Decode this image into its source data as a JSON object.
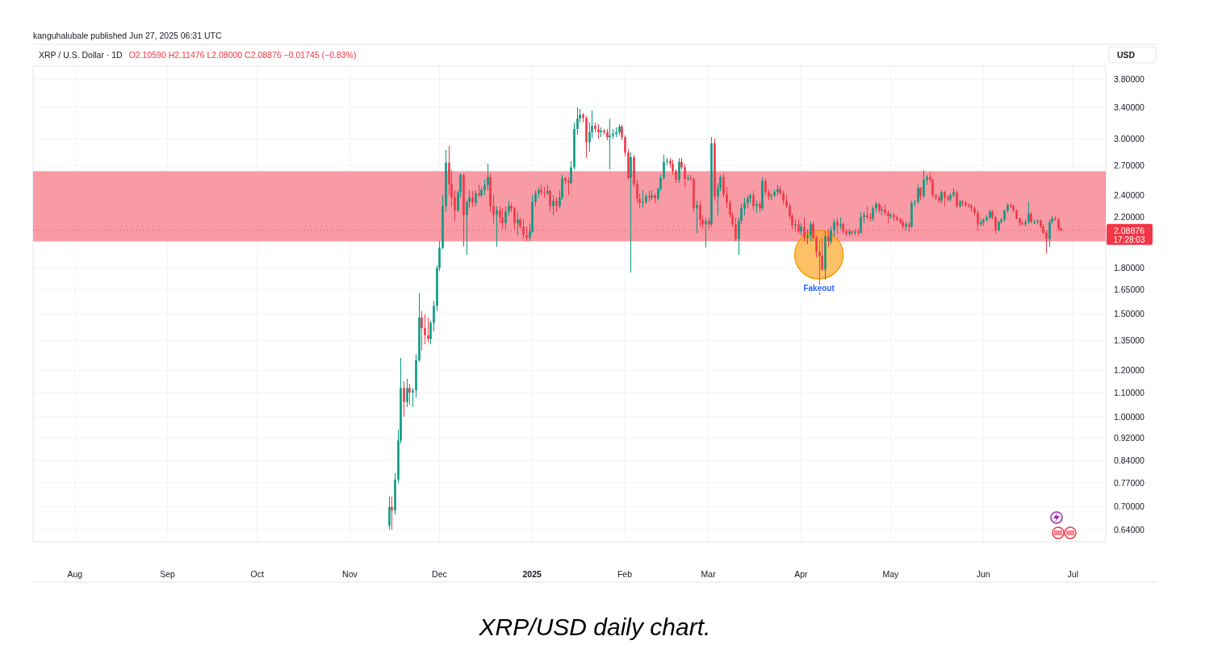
{
  "chart_data": {
    "type": "candlestick",
    "title": "XRP / U.S. Dollar · 1D",
    "subtitle": "O2.10590 H2.11476 L2.08000 C2.08876 −0.01745 (−0.83%)",
    "ylabel": "USD",
    "annotations": [
      "kanguhalubale published Jun 27, 2025 06:31 UTC",
      "17:28:03",
      "XRP/USD daily chart.",
      {
        "text": "Fakeout",
        "x": "2025-04-07",
        "y": 1.66
      }
    ],
    "log": "y",
    "grid": true,
    "xlim": [
      "2024-07-18",
      "2025-07-12"
    ],
    "xticks": [
      {
        "value": "2024-08-01",
        "label": "Aug"
      },
      {
        "value": "2024-09-01",
        "label": "Sep"
      },
      {
        "value": "2024-10-01",
        "label": "Oct"
      },
      {
        "value": "2024-11-01",
        "label": "Nov"
      },
      {
        "value": "2024-12-01",
        "label": "Dec"
      },
      {
        "value": "2025-01-01",
        "label": "2025"
      },
      {
        "value": "2025-02-01",
        "label": "Feb"
      },
      {
        "value": "2025-03-01",
        "label": "Mar"
      },
      {
        "value": "2025-04-01",
        "label": "Apr"
      },
      {
        "value": "2025-05-01",
        "label": "May"
      },
      {
        "value": "2025-06-01",
        "label": "Jun"
      },
      {
        "value": "2025-07-01",
        "label": "Jul"
      }
    ],
    "ylim": [
      0.61,
      4.0
    ],
    "yticks": [
      {
        "value": 0.64,
        "label": "0.64000"
      },
      {
        "value": 0.7,
        "label": "0.70000"
      },
      {
        "value": 0.77,
        "label": "0.77000"
      },
      {
        "value": 0.84,
        "label": "0.84000"
      },
      {
        "value": 0.92,
        "label": "0.92000"
      },
      {
        "value": 1.0,
        "label": "1.00000"
      },
      {
        "value": 1.1,
        "label": "1.10000"
      },
      {
        "value": 1.2,
        "label": "1.20000"
      },
      {
        "value": 1.35,
        "label": "1.35000"
      },
      {
        "value": 1.5,
        "label": "1.50000"
      },
      {
        "value": 1.65,
        "label": "1.65000"
      },
      {
        "value": 1.8,
        "label": "1.80000"
      },
      {
        "value": 2.2,
        "label": "2.20000"
      },
      {
        "value": 2.4,
        "label": "2.40000"
      },
      {
        "value": 2.7,
        "label": "2.70000"
      },
      {
        "value": 3.0,
        "label": "3.00000"
      },
      {
        "value": 3.4,
        "label": "3.40000"
      },
      {
        "value": 3.8,
        "label": "3.80000"
      }
    ],
    "ref_lines": [
      {
        "axis": "y",
        "value": 2.08876,
        "label": "2.08876",
        "color": "#f23645",
        "line_style": "dotted"
      }
    ],
    "bands": [
      {
        "axis": "y",
        "from": 2.0,
        "to": 2.64,
        "color": "#f7828f"
      }
    ],
    "x": [
      "2024-11-14",
      "2024-11-15",
      "2024-11-16",
      "2024-11-17",
      "2024-11-18",
      "2024-11-19",
      "2024-11-20",
      "2024-11-21",
      "2024-11-22",
      "2024-11-23",
      "2024-11-24",
      "2024-11-25",
      "2024-11-26",
      "2024-11-27",
      "2024-11-28",
      "2024-11-29",
      "2024-11-30",
      "2024-12-01",
      "2024-12-02",
      "2024-12-03",
      "2024-12-04",
      "2024-12-05",
      "2024-12-06",
      "2024-12-07",
      "2024-12-08",
      "2024-12-09",
      "2024-12-10",
      "2024-12-11",
      "2024-12-12",
      "2024-12-13",
      "2024-12-14",
      "2024-12-15",
      "2024-12-16",
      "2024-12-17",
      "2024-12-18",
      "2024-12-19",
      "2024-12-20",
      "2024-12-21",
      "2024-12-22",
      "2024-12-23",
      "2024-12-24",
      "2024-12-25",
      "2024-12-26",
      "2024-12-27",
      "2024-12-28",
      "2024-12-29",
      "2024-12-30",
      "2024-12-31",
      "2025-01-01",
      "2025-01-02",
      "2025-01-03",
      "2025-01-04",
      "2025-01-05",
      "2025-01-06",
      "2025-01-07",
      "2025-01-08",
      "2025-01-09",
      "2025-01-10",
      "2025-01-11",
      "2025-01-12",
      "2025-01-13",
      "2025-01-14",
      "2025-01-15",
      "2025-01-16",
      "2025-01-17",
      "2025-01-18",
      "2025-01-19",
      "2025-01-20",
      "2025-01-21",
      "2025-01-22",
      "2025-01-23",
      "2025-01-24",
      "2025-01-25",
      "2025-01-26",
      "2025-01-27",
      "2025-01-28",
      "2025-01-29",
      "2025-01-30",
      "2025-01-31",
      "2025-02-01",
      "2025-02-02",
      "2025-02-03",
      "2025-02-04",
      "2025-02-05",
      "2025-02-06",
      "2025-02-07",
      "2025-02-08",
      "2025-02-09",
      "2025-02-10",
      "2025-02-11",
      "2025-02-12",
      "2025-02-13",
      "2025-02-14",
      "2025-02-15",
      "2025-02-16",
      "2025-02-17",
      "2025-02-18",
      "2025-02-19",
      "2025-02-20",
      "2025-02-21",
      "2025-02-22",
      "2025-02-23",
      "2025-02-24",
      "2025-02-25",
      "2025-02-26",
      "2025-02-27",
      "2025-02-28",
      "2025-03-01",
      "2025-03-02",
      "2025-03-03",
      "2025-03-04",
      "2025-03-05",
      "2025-03-06",
      "2025-03-07",
      "2025-03-08",
      "2025-03-09",
      "2025-03-10",
      "2025-03-11",
      "2025-03-12",
      "2025-03-13",
      "2025-03-14",
      "2025-03-15",
      "2025-03-16",
      "2025-03-17",
      "2025-03-18",
      "2025-03-19",
      "2025-03-20",
      "2025-03-21",
      "2025-03-22",
      "2025-03-23",
      "2025-03-24",
      "2025-03-25",
      "2025-03-26",
      "2025-03-27",
      "2025-03-28",
      "2025-03-29",
      "2025-03-30",
      "2025-03-31",
      "2025-04-01",
      "2025-04-02",
      "2025-04-03",
      "2025-04-04",
      "2025-04-05",
      "2025-04-06",
      "2025-04-07",
      "2025-04-08",
      "2025-04-09",
      "2025-04-10",
      "2025-04-11",
      "2025-04-12",
      "2025-04-13",
      "2025-04-14",
      "2025-04-15",
      "2025-04-16",
      "2025-04-17",
      "2025-04-18",
      "2025-04-19",
      "2025-04-20",
      "2025-04-21",
      "2025-04-22",
      "2025-04-23",
      "2025-04-24",
      "2025-04-25",
      "2025-04-26",
      "2025-04-27",
      "2025-04-28",
      "2025-04-29",
      "2025-04-30",
      "2025-05-01",
      "2025-05-02",
      "2025-05-03",
      "2025-05-04",
      "2025-05-05",
      "2025-05-06",
      "2025-05-07",
      "2025-05-08",
      "2025-05-09",
      "2025-05-10",
      "2025-05-11",
      "2025-05-12",
      "2025-05-13",
      "2025-05-14",
      "2025-05-15",
      "2025-05-16",
      "2025-05-17",
      "2025-05-18",
      "2025-05-19",
      "2025-05-20",
      "2025-05-21",
      "2025-05-22",
      "2025-05-23",
      "2025-05-24",
      "2025-05-25",
      "2025-05-26",
      "2025-05-27",
      "2025-05-28",
      "2025-05-29",
      "2025-05-30",
      "2025-05-31",
      "2025-06-01",
      "2025-06-02",
      "2025-06-03",
      "2025-06-04",
      "2025-06-05",
      "2025-06-06",
      "2025-06-07",
      "2025-06-08",
      "2025-06-09",
      "2025-06-10",
      "2025-06-11",
      "2025-06-12",
      "2025-06-13",
      "2025-06-14",
      "2025-06-15",
      "2025-06-16",
      "2025-06-17",
      "2025-06-18",
      "2025-06-19",
      "2025-06-20",
      "2025-06-21",
      "2025-06-22",
      "2025-06-23",
      "2025-06-24",
      "2025-06-25",
      "2025-06-26",
      "2025-06-27"
    ],
    "ohlc": [
      [
        0.65,
        0.73,
        0.64,
        0.7
      ],
      [
        0.7,
        0.73,
        0.64,
        0.69
      ],
      [
        0.69,
        0.8,
        0.68,
        0.78
      ],
      [
        0.78,
        0.95,
        0.77,
        0.91
      ],
      [
        0.91,
        1.26,
        0.9,
        1.12
      ],
      [
        1.12,
        1.15,
        1.0,
        1.06
      ],
      [
        1.06,
        1.16,
        1.04,
        1.12
      ],
      [
        1.12,
        1.14,
        1.05,
        1.1
      ],
      [
        1.1,
        1.12,
        1.04,
        1.11
      ],
      [
        1.11,
        1.28,
        1.08,
        1.25
      ],
      [
        1.25,
        1.63,
        1.24,
        1.48
      ],
      [
        1.48,
        1.52,
        1.3,
        1.42
      ],
      [
        1.42,
        1.5,
        1.33,
        1.38
      ],
      [
        1.38,
        1.48,
        1.34,
        1.36
      ],
      [
        1.36,
        1.46,
        1.33,
        1.45
      ],
      [
        1.45,
        1.58,
        1.4,
        1.55
      ],
      [
        1.55,
        1.82,
        1.52,
        1.8
      ],
      [
        1.8,
        2.0,
        1.78,
        1.95
      ],
      [
        1.95,
        2.4,
        1.94,
        2.3
      ],
      [
        2.3,
        2.87,
        2.25,
        2.73
      ],
      [
        2.73,
        2.92,
        2.4,
        2.51
      ],
      [
        2.51,
        2.65,
        2.3,
        2.38
      ],
      [
        2.38,
        2.45,
        2.17,
        2.26
      ],
      [
        2.26,
        2.45,
        2.25,
        2.43
      ],
      [
        2.43,
        2.62,
        2.38,
        2.6
      ],
      [
        2.6,
        2.62,
        1.96,
        2.22
      ],
      [
        2.22,
        2.35,
        1.9,
        2.34
      ],
      [
        2.34,
        2.45,
        2.28,
        2.38
      ],
      [
        2.38,
        2.44,
        2.3,
        2.33
      ],
      [
        2.33,
        2.45,
        2.3,
        2.42
      ],
      [
        2.42,
        2.5,
        2.38,
        2.4
      ],
      [
        2.4,
        2.48,
        2.38,
        2.45
      ],
      [
        2.45,
        2.55,
        2.4,
        2.5
      ],
      [
        2.5,
        2.72,
        2.45,
        2.58
      ],
      [
        2.58,
        2.62,
        2.25,
        2.3
      ],
      [
        2.3,
        2.4,
        2.15,
        2.22
      ],
      [
        2.22,
        2.3,
        1.96,
        2.26
      ],
      [
        2.26,
        2.3,
        2.15,
        2.2
      ],
      [
        2.2,
        2.28,
        2.1,
        2.15
      ],
      [
        2.15,
        2.3,
        2.1,
        2.25
      ],
      [
        2.25,
        2.35,
        2.22,
        2.3
      ],
      [
        2.3,
        2.33,
        2.25,
        2.28
      ],
      [
        2.28,
        2.3,
        2.1,
        2.15
      ],
      [
        2.15,
        2.25,
        2.05,
        2.18
      ],
      [
        2.18,
        2.2,
        2.1,
        2.12
      ],
      [
        2.12,
        2.18,
        2.02,
        2.05
      ],
      [
        2.05,
        2.12,
        2.0,
        2.03
      ],
      [
        2.03,
        2.15,
        2.0,
        2.08
      ],
      [
        2.08,
        2.4,
        2.07,
        2.34
      ],
      [
        2.34,
        2.45,
        2.3,
        2.42
      ],
      [
        2.42,
        2.48,
        2.38,
        2.45
      ],
      [
        2.45,
        2.5,
        2.4,
        2.43
      ],
      [
        2.43,
        2.48,
        2.38,
        2.42
      ],
      [
        2.42,
        2.5,
        2.4,
        2.44
      ],
      [
        2.44,
        2.46,
        2.25,
        2.3
      ],
      [
        2.3,
        2.4,
        2.22,
        2.35
      ],
      [
        2.35,
        2.38,
        2.25,
        2.3
      ],
      [
        2.3,
        2.45,
        2.28,
        2.38
      ],
      [
        2.38,
        2.6,
        2.36,
        2.57
      ],
      [
        2.57,
        2.58,
        2.5,
        2.54
      ],
      [
        2.54,
        2.58,
        2.4,
        2.52
      ],
      [
        2.52,
        2.75,
        2.5,
        2.68
      ],
      [
        2.68,
        3.2,
        2.66,
        3.12
      ],
      [
        3.12,
        3.4,
        3.05,
        3.25
      ],
      [
        3.25,
        3.38,
        3.2,
        3.3
      ],
      [
        3.3,
        3.32,
        3.2,
        3.26
      ],
      [
        3.26,
        3.28,
        2.78,
        2.96
      ],
      [
        2.96,
        3.2,
        2.85,
        3.08
      ],
      [
        3.08,
        3.36,
        3.0,
        3.16
      ],
      [
        3.16,
        3.2,
        3.08,
        3.12
      ],
      [
        3.12,
        3.18,
        3.0,
        3.08
      ],
      [
        3.08,
        3.14,
        3.02,
        3.1
      ],
      [
        3.1,
        3.12,
        3.05,
        3.08
      ],
      [
        3.08,
        3.12,
        2.98,
        3.02
      ],
      [
        3.02,
        3.25,
        2.66,
        3.04
      ],
      [
        3.04,
        3.12,
        3.0,
        3.06
      ],
      [
        3.06,
        3.14,
        3.02,
        3.08
      ],
      [
        3.08,
        3.18,
        3.05,
        3.15
      ],
      [
        3.15,
        3.17,
        2.98,
        3.02
      ],
      [
        3.02,
        3.04,
        2.8,
        2.84
      ],
      [
        2.84,
        2.88,
        2.55,
        2.57
      ],
      [
        2.57,
        2.84,
        1.77,
        2.79
      ],
      [
        2.79,
        2.82,
        2.48,
        2.51
      ],
      [
        2.51,
        2.55,
        2.33,
        2.37
      ],
      [
        2.37,
        2.42,
        2.28,
        2.33
      ],
      [
        2.33,
        2.45,
        2.28,
        2.34
      ],
      [
        2.34,
        2.42,
        2.32,
        2.39
      ],
      [
        2.39,
        2.44,
        2.34,
        2.38
      ],
      [
        2.38,
        2.45,
        2.36,
        2.4
      ],
      [
        2.4,
        2.42,
        2.33,
        2.37
      ],
      [
        2.37,
        2.47,
        2.35,
        2.46
      ],
      [
        2.46,
        2.6,
        2.44,
        2.57
      ],
      [
        2.57,
        2.82,
        2.55,
        2.74
      ],
      [
        2.74,
        2.78,
        2.7,
        2.75
      ],
      [
        2.75,
        2.78,
        2.68,
        2.72
      ],
      [
        2.72,
        2.76,
        2.6,
        2.64
      ],
      [
        2.64,
        2.66,
        2.52,
        2.55
      ],
      [
        2.55,
        2.78,
        2.52,
        2.74
      ],
      [
        2.74,
        2.78,
        2.65,
        2.68
      ],
      [
        2.68,
        2.72,
        2.48,
        2.56
      ],
      [
        2.56,
        2.6,
        2.54,
        2.57
      ],
      [
        2.57,
        2.6,
        2.54,
        2.56
      ],
      [
        2.56,
        2.58,
        2.25,
        2.28
      ],
      [
        2.28,
        2.35,
        2.07,
        2.31
      ],
      [
        2.31,
        2.35,
        2.12,
        2.18
      ],
      [
        2.18,
        2.22,
        2.1,
        2.14
      ],
      [
        2.14,
        2.2,
        1.95,
        2.17
      ],
      [
        2.17,
        2.2,
        2.1,
        2.14
      ],
      [
        2.14,
        3.02,
        2.12,
        2.95
      ],
      [
        2.95,
        3.0,
        2.35,
        2.39
      ],
      [
        2.39,
        2.52,
        2.22,
        2.47
      ],
      [
        2.47,
        2.6,
        2.44,
        2.58
      ],
      [
        2.58,
        2.62,
        2.38,
        2.41
      ],
      [
        2.41,
        2.48,
        2.28,
        2.33
      ],
      [
        2.33,
        2.36,
        2.2,
        2.22
      ],
      [
        2.22,
        2.25,
        2.12,
        2.14
      ],
      [
        2.14,
        2.2,
        2.0,
        2.02
      ],
      [
        2.02,
        2.2,
        1.9,
        2.17
      ],
      [
        2.17,
        2.32,
        2.14,
        2.28
      ],
      [
        2.28,
        2.38,
        2.22,
        2.33
      ],
      [
        2.33,
        2.4,
        2.28,
        2.37
      ],
      [
        2.37,
        2.42,
        2.33,
        2.4
      ],
      [
        2.4,
        2.44,
        2.26,
        2.3
      ],
      [
        2.3,
        2.35,
        2.24,
        2.32
      ],
      [
        2.32,
        2.34,
        2.25,
        2.28
      ],
      [
        2.28,
        2.58,
        2.26,
        2.54
      ],
      [
        2.54,
        2.56,
        2.4,
        2.43
      ],
      [
        2.43,
        2.46,
        2.36,
        2.39
      ],
      [
        2.39,
        2.42,
        2.36,
        2.4
      ],
      [
        2.4,
        2.46,
        2.38,
        2.43
      ],
      [
        2.43,
        2.5,
        2.4,
        2.46
      ],
      [
        2.46,
        2.49,
        2.4,
        2.42
      ],
      [
        2.42,
        2.44,
        2.32,
        2.35
      ],
      [
        2.35,
        2.4,
        2.28,
        2.3
      ],
      [
        2.3,
        2.33,
        2.18,
        2.21
      ],
      [
        2.21,
        2.23,
        2.1,
        2.13
      ],
      [
        2.13,
        2.18,
        2.08,
        2.14
      ],
      [
        2.14,
        2.18,
        2.06,
        2.08
      ],
      [
        2.08,
        2.15,
        2.05,
        2.12
      ],
      [
        2.12,
        2.2,
        2.0,
        2.03
      ],
      [
        2.03,
        2.1,
        1.98,
        2.05
      ],
      [
        2.05,
        2.16,
        2.0,
        2.14
      ],
      [
        2.14,
        2.16,
        2.0,
        2.03
      ],
      [
        2.03,
        2.05,
        1.88,
        1.92
      ],
      [
        1.92,
        2.0,
        1.62,
        1.89
      ],
      [
        1.89,
        2.02,
        1.78,
        1.79
      ],
      [
        1.79,
        2.08,
        1.72,
        2.04
      ],
      [
        2.04,
        2.1,
        1.96,
        2.0
      ],
      [
        2.0,
        2.12,
        1.98,
        2.09
      ],
      [
        2.09,
        2.18,
        2.04,
        2.16
      ],
      [
        2.16,
        2.2,
        2.06,
        2.13
      ],
      [
        2.13,
        2.2,
        2.1,
        2.14
      ],
      [
        2.14,
        2.16,
        2.06,
        2.08
      ],
      [
        2.08,
        2.1,
        2.04,
        2.06
      ],
      [
        2.06,
        2.1,
        2.04,
        2.08
      ],
      [
        2.08,
        2.09,
        2.05,
        2.07
      ],
      [
        2.07,
        2.1,
        2.05,
        2.08
      ],
      [
        2.08,
        2.1,
        2.05,
        2.07
      ],
      [
        2.07,
        2.25,
        2.06,
        2.2
      ],
      [
        2.2,
        2.25,
        2.15,
        2.22
      ],
      [
        2.22,
        2.3,
        2.18,
        2.2
      ],
      [
        2.2,
        2.24,
        2.16,
        2.19
      ],
      [
        2.19,
        2.3,
        2.17,
        2.28
      ],
      [
        2.28,
        2.34,
        2.24,
        2.32
      ],
      [
        2.32,
        2.33,
        2.24,
        2.26
      ],
      [
        2.26,
        2.3,
        2.22,
        2.27
      ],
      [
        2.27,
        2.32,
        2.22,
        2.24
      ],
      [
        2.24,
        2.26,
        2.15,
        2.21
      ],
      [
        2.21,
        2.24,
        2.18,
        2.22
      ],
      [
        2.22,
        2.24,
        2.17,
        2.2
      ],
      [
        2.2,
        2.22,
        2.17,
        2.18
      ],
      [
        2.18,
        2.2,
        2.14,
        2.16
      ],
      [
        2.16,
        2.18,
        2.1,
        2.12
      ],
      [
        2.12,
        2.16,
        2.09,
        2.14
      ],
      [
        2.14,
        2.16,
        2.08,
        2.12
      ],
      [
        2.12,
        2.35,
        2.11,
        2.33
      ],
      [
        2.33,
        2.36,
        2.3,
        2.34
      ],
      [
        2.34,
        2.5,
        2.32,
        2.47
      ],
      [
        2.47,
        2.48,
        2.36,
        2.39
      ],
      [
        2.39,
        2.65,
        2.37,
        2.55
      ],
      [
        2.55,
        2.6,
        2.5,
        2.58
      ],
      [
        2.58,
        2.63,
        2.52,
        2.55
      ],
      [
        2.55,
        2.56,
        2.38,
        2.4
      ],
      [
        2.4,
        2.42,
        2.36,
        2.38
      ],
      [
        2.38,
        2.4,
        2.33,
        2.35
      ],
      [
        2.35,
        2.45,
        2.33,
        2.43
      ],
      [
        2.43,
        2.44,
        2.3,
        2.38
      ],
      [
        2.38,
        2.4,
        2.34,
        2.36
      ],
      [
        2.36,
        2.42,
        2.34,
        2.4
      ],
      [
        2.4,
        2.47,
        2.38,
        2.43
      ],
      [
        2.43,
        2.45,
        2.28,
        2.3
      ],
      [
        2.3,
        2.36,
        2.28,
        2.34
      ],
      [
        2.34,
        2.36,
        2.3,
        2.33
      ],
      [
        2.33,
        2.35,
        2.29,
        2.31
      ],
      [
        2.31,
        2.33,
        2.28,
        2.3
      ],
      [
        2.3,
        2.32,
        2.25,
        2.28
      ],
      [
        2.28,
        2.3,
        2.22,
        2.24
      ],
      [
        2.24,
        2.26,
        2.09,
        2.14
      ],
      [
        2.14,
        2.19,
        2.12,
        2.16
      ],
      [
        2.16,
        2.19,
        2.13,
        2.18
      ],
      [
        2.18,
        2.22,
        2.16,
        2.2
      ],
      [
        2.2,
        2.27,
        2.18,
        2.25
      ],
      [
        2.25,
        2.27,
        2.18,
        2.2
      ],
      [
        2.2,
        2.22,
        2.06,
        2.09
      ],
      [
        2.09,
        2.17,
        2.08,
        2.16
      ],
      [
        2.16,
        2.2,
        2.14,
        2.18
      ],
      [
        2.18,
        2.27,
        2.16,
        2.26
      ],
      [
        2.26,
        2.33,
        2.24,
        2.31
      ],
      [
        2.31,
        2.33,
        2.28,
        2.3
      ],
      [
        2.3,
        2.31,
        2.25,
        2.26
      ],
      [
        2.26,
        2.27,
        2.18,
        2.19
      ],
      [
        2.19,
        2.2,
        2.13,
        2.15
      ],
      [
        2.15,
        2.17,
        2.13,
        2.14
      ],
      [
        2.14,
        2.18,
        2.12,
        2.16
      ],
      [
        2.16,
        2.34,
        2.14,
        2.23
      ],
      [
        2.23,
        2.25,
        2.15,
        2.16
      ],
      [
        2.16,
        2.18,
        2.14,
        2.16
      ],
      [
        2.16,
        2.18,
        2.14,
        2.17
      ],
      [
        2.17,
        2.18,
        2.11,
        2.12
      ],
      [
        2.12,
        2.14,
        2.06,
        2.07
      ],
      [
        2.07,
        2.09,
        1.91,
        2.02
      ],
      [
        2.02,
        2.18,
        1.96,
        2.16
      ],
      [
        2.16,
        2.21,
        2.14,
        2.19
      ],
      [
        2.19,
        2.21,
        2.17,
        2.18
      ],
      [
        2.18,
        2.2,
        2.09,
        2.1
      ],
      [
        2.1059,
        2.11476,
        2.08,
        2.08876
      ]
    ]
  }
}
